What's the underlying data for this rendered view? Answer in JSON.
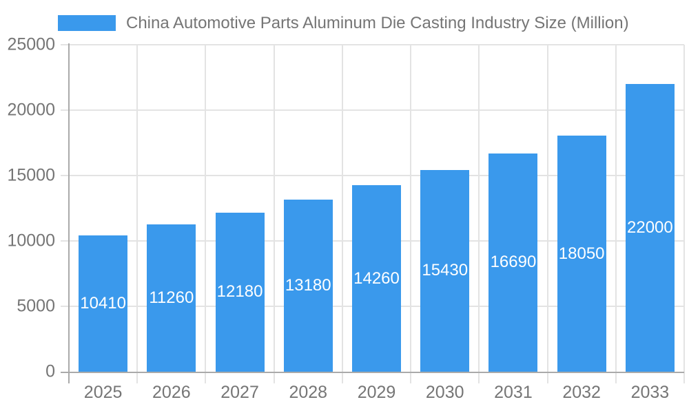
{
  "chart_data": {
    "type": "bar",
    "title": "China Automotive Parts Aluminum Die Casting Industry Size (Million)",
    "categories": [
      "2025",
      "2026",
      "2027",
      "2028",
      "2029",
      "2030",
      "2031",
      "2032",
      "2033"
    ],
    "values": [
      10410,
      11260,
      12180,
      13180,
      14260,
      15430,
      16690,
      18050,
      22000
    ],
    "xlabel": "",
    "ylabel": "",
    "ylim": [
      0,
      25000
    ],
    "yticks": [
      0,
      5000,
      10000,
      15000,
      20000,
      25000
    ],
    "grid": true,
    "legend_position": "top-center",
    "data_label_position": "inside-center",
    "colors": {
      "bar": "#3A99EC",
      "data_label": "#FFFFFF",
      "axis_text": "#757575",
      "gridline": "#E3E3E3",
      "axis_line": "#AAAAAA",
      "background": "#FFFFFF"
    }
  }
}
